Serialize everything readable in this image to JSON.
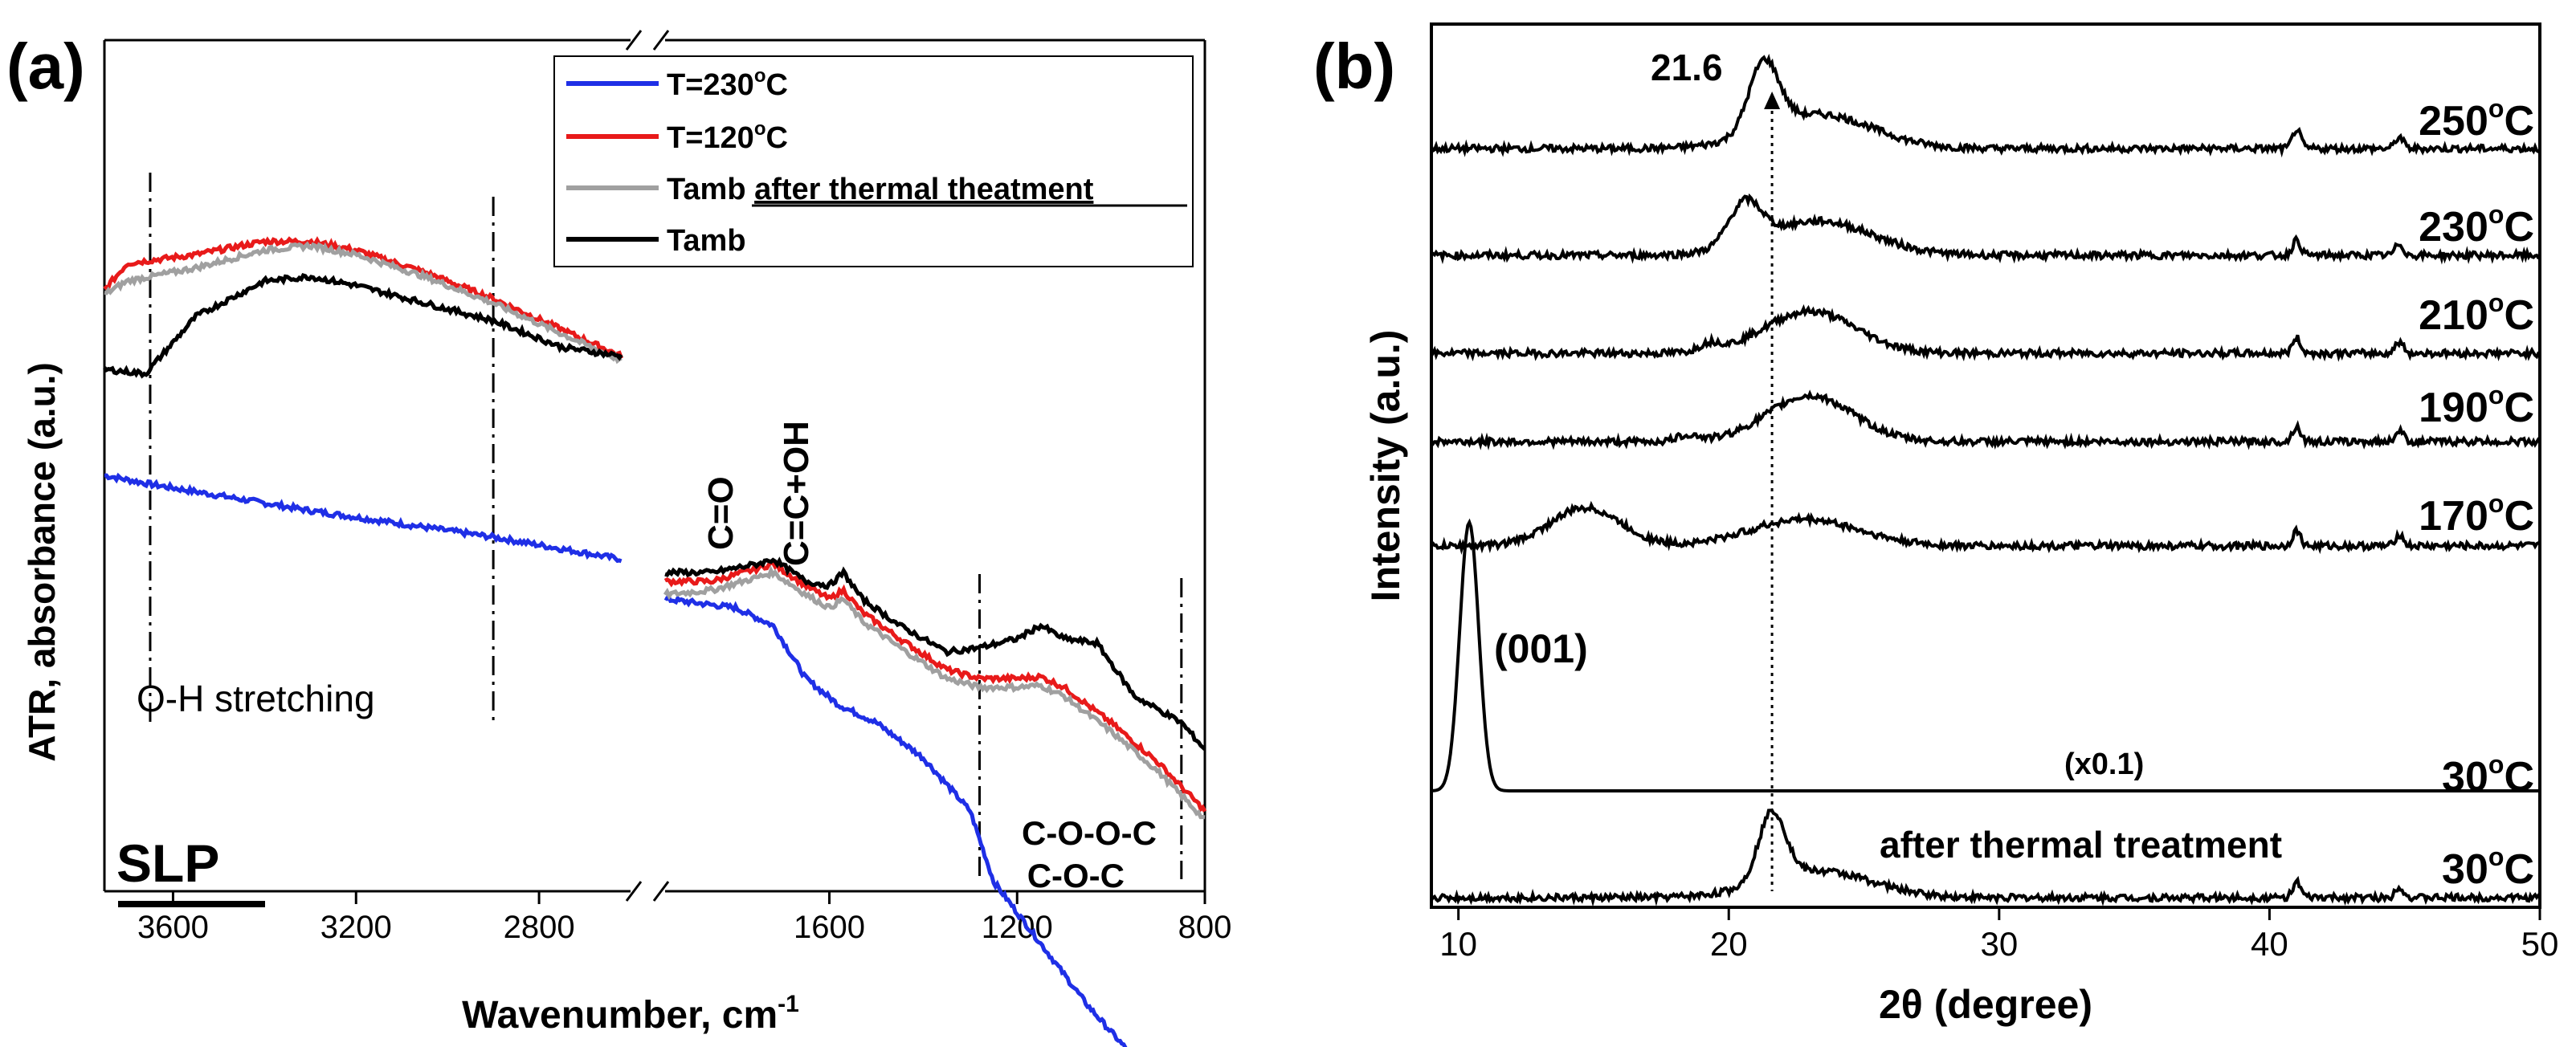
{
  "colors": {
    "blue": "#1f2fe6",
    "red": "#e81a1a",
    "gray": "#a0a0a0",
    "black": "#000000"
  },
  "chart_data": [
    {
      "type": "line",
      "panel": "(a)",
      "xlabel": "Wavenumber, cm",
      "xlabel_sup": "-1",
      "ylabel": "ATR, absorbance (a.u.)",
      "axis_break": true,
      "xlim_left": [
        3750,
        2600
      ],
      "xlim_right": [
        1950,
        800
      ],
      "xticks": [
        "3600",
        "3200",
        "2800",
        "1600",
        "1200",
        "800"
      ],
      "legend": [
        {
          "label": "T=230",
          "sup": "o",
          "unit": "C"
        },
        {
          "label": "T=120",
          "sup": "o",
          "unit": "C"
        },
        {
          "label": "Tamb",
          "underlined": "after thermal theatment"
        },
        {
          "label": "Tamb"
        }
      ],
      "annotations": {
        "oh": "O-H stretching",
        "co": "C=O",
        "ccoh": "C=C+OH",
        "coc1": "C-O-O-C",
        "coc2": "C-O-C",
        "sample": "SLP"
      },
      "reference_lines_cm": [
        3650,
        2900,
        1280,
        850
      ],
      "series": [
        {
          "name": "T=230°C",
          "color": "blue",
          "left": [
            [
              3750,
              0.58
            ],
            [
              3650,
              0.57
            ],
            [
              3300,
              0.54
            ],
            [
              2900,
              0.51
            ],
            [
              2620,
              0.485
            ]
          ],
          "right": [
            [
              1950,
              0.44
            ],
            [
              1800,
              0.43
            ],
            [
              1720,
              0.41
            ],
            [
              1650,
              0.35
            ],
            [
              1580,
              0.32
            ],
            [
              1500,
              0.3
            ],
            [
              1400,
              0.26
            ],
            [
              1300,
              0.2
            ],
            [
              1250,
              0.12
            ],
            [
              1150,
              0.05
            ],
            [
              1050,
              -0.02
            ],
            [
              950,
              -0.08
            ]
          ]
        },
        {
          "name": "T=120°C",
          "color": "red",
          "left": [
            [
              3750,
              0.79
            ],
            [
              3700,
              0.82
            ],
            [
              3550,
              0.83
            ],
            [
              3400,
              0.845
            ],
            [
              3300,
              0.845
            ],
            [
              3200,
              0.835
            ],
            [
              3050,
              0.81
            ],
            [
              2900,
              0.78
            ],
            [
              2750,
              0.745
            ],
            [
              2620,
              0.715
            ]
          ],
          "right": [
            [
              1950,
              0.46
            ],
            [
              1850,
              0.46
            ],
            [
              1750,
              0.475
            ],
            [
              1720,
              0.48
            ],
            [
              1650,
              0.455
            ],
            [
              1600,
              0.44
            ],
            [
              1570,
              0.45
            ],
            [
              1530,
              0.425
            ],
            [
              1450,
              0.395
            ],
            [
              1350,
              0.36
            ],
            [
              1280,
              0.35
            ],
            [
              1200,
              0.35
            ],
            [
              1150,
              0.352
            ],
            [
              1100,
              0.34
            ],
            [
              1000,
              0.3
            ],
            [
              900,
              0.255
            ],
            [
              800,
              0.2
            ]
          ]
        },
        {
          "name": "Tamb after thermal theatment",
          "color": "gray",
          "left": [
            [
              3750,
              0.785
            ],
            [
              3700,
              0.8
            ],
            [
              3550,
              0.815
            ],
            [
              3400,
              0.835
            ],
            [
              3300,
              0.84
            ],
            [
              3200,
              0.83
            ],
            [
              3050,
              0.805
            ],
            [
              2900,
              0.775
            ],
            [
              2750,
              0.74
            ],
            [
              2620,
              0.71
            ]
          ],
          "right": [
            [
              1950,
              0.445
            ],
            [
              1850,
              0.45
            ],
            [
              1750,
              0.465
            ],
            [
              1720,
              0.47
            ],
            [
              1650,
              0.445
            ],
            [
              1600,
              0.43
            ],
            [
              1570,
              0.44
            ],
            [
              1530,
              0.415
            ],
            [
              1450,
              0.385
            ],
            [
              1350,
              0.35
            ],
            [
              1280,
              0.34
            ],
            [
              1200,
              0.34
            ],
            [
              1150,
              0.342
            ],
            [
              1100,
              0.33
            ],
            [
              1000,
              0.29
            ],
            [
              900,
              0.245
            ],
            [
              800,
              0.19
            ]
          ]
        },
        {
          "name": "Tamb",
          "color": "black",
          "left": [
            [
              3750,
              0.7
            ],
            [
              3660,
              0.695
            ],
            [
              3550,
              0.76
            ],
            [
              3400,
              0.8
            ],
            [
              3300,
              0.805
            ],
            [
              3200,
              0.795
            ],
            [
              3050,
              0.775
            ],
            [
              2900,
              0.755
            ],
            [
              2750,
              0.725
            ],
            [
              2620,
              0.715
            ]
          ],
          "right": [
            [
              1950,
              0.47
            ],
            [
              1850,
              0.47
            ],
            [
              1750,
              0.48
            ],
            [
              1720,
              0.485
            ],
            [
              1650,
              0.46
            ],
            [
              1600,
              0.455
            ],
            [
              1570,
              0.47
            ],
            [
              1530,
              0.44
            ],
            [
              1450,
              0.41
            ],
            [
              1350,
              0.38
            ],
            [
              1280,
              0.385
            ],
            [
              1200,
              0.395
            ],
            [
              1150,
              0.41
            ],
            [
              1100,
              0.395
            ],
            [
              1030,
              0.39
            ],
            [
              950,
              0.33
            ],
            [
              850,
              0.3
            ],
            [
              800,
              0.27
            ]
          ]
        }
      ]
    },
    {
      "type": "line",
      "panel": "(b)",
      "xlabel": "2θ (degree)",
      "ylabel": "Intensity (a.u.)",
      "xlim": [
        9,
        50
      ],
      "xticks": [
        10,
        20,
        30,
        40,
        50
      ],
      "reference_line_2theta": 21.6,
      "annotations": {
        "peak": "21.6",
        "plane": "(001)",
        "scale": "(x0.1)",
        "treatment": "after thermal treatment"
      },
      "series": [
        {
          "label": "250",
          "sup": "o",
          "unit": "C",
          "peaks": [
            [
              21.3,
              0.9,
              0.55
            ],
            [
              23.3,
              0.45,
              2.0
            ],
            [
              41.0,
              0.25,
              0.15
            ],
            [
              44.8,
              0.15,
              0.15
            ]
          ]
        },
        {
          "label": "230",
          "sup": "o",
          "unit": "C",
          "peaks": [
            [
              20.6,
              0.55,
              0.6
            ],
            [
              23.3,
              0.45,
              2.0
            ],
            [
              41.0,
              0.2,
              0.15
            ],
            [
              44.8,
              0.15,
              0.15
            ]
          ]
        },
        {
          "label": "210",
          "sup": "o",
          "unit": "C",
          "peaks": [
            [
              19.3,
              0.1,
              0.4
            ],
            [
              23.0,
              0.55,
              1.7
            ],
            [
              41.0,
              0.2,
              0.15
            ],
            [
              44.8,
              0.15,
              0.15
            ]
          ]
        },
        {
          "label": "190",
          "sup": "o",
          "unit": "C",
          "peaks": [
            [
              18.5,
              0.08,
              0.4
            ],
            [
              23.0,
              0.6,
              1.6
            ],
            [
              41.0,
              0.2,
              0.15
            ],
            [
              44.8,
              0.15,
              0.15
            ]
          ]
        },
        {
          "label": "170",
          "sup": "o",
          "unit": "C",
          "peaks": [
            [
              14.7,
              0.5,
              1.3
            ],
            [
              22.8,
              0.35,
              2.0
            ],
            [
              41.0,
              0.2,
              0.15
            ],
            [
              44.8,
              0.15,
              0.15
            ]
          ]
        },
        {
          "label": "30",
          "sup": "o",
          "unit": "C",
          "scale": "(x0.1)",
          "peaks": [
            [
              10.4,
              1.6,
              0.35
            ]
          ]
        },
        {
          "label": "30",
          "sup": "o",
          "unit": "C",
          "note": "after thermal treatment",
          "peaks": [
            [
              21.6,
              0.9,
              0.5
            ],
            [
              23.3,
              0.35,
              2.0
            ],
            [
              41.0,
              0.2,
              0.15
            ],
            [
              44.8,
              0.15,
              0.15
            ]
          ]
        }
      ]
    }
  ]
}
